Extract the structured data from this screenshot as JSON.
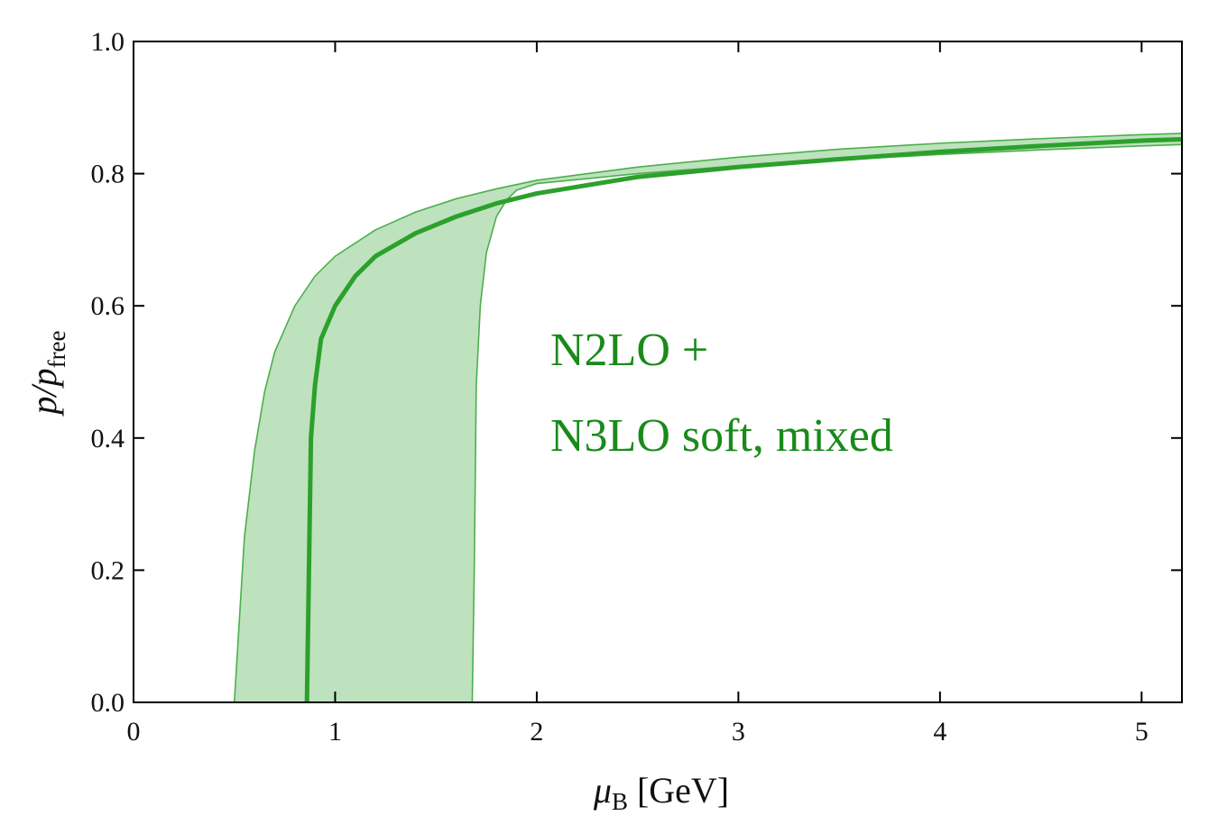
{
  "chart_data": {
    "type": "area",
    "xlabel": {
      "symbol": "μ",
      "subscript": "B",
      "unit": "[GeV]"
    },
    "ylabel": {
      "symbol": "p/p",
      "subscript": "free"
    },
    "xlim": [
      0,
      5.2
    ],
    "ylim": [
      0,
      1.0
    ],
    "x_ticks": [
      0,
      1,
      2,
      3,
      4,
      5
    ],
    "x_tick_labels": [
      "0",
      "1",
      "2",
      "3",
      "4",
      "5"
    ],
    "y_ticks": [
      0.0,
      0.2,
      0.4,
      0.6,
      0.8,
      1.0
    ],
    "y_tick_labels": [
      "0.0",
      "0.2",
      "0.4",
      "0.6",
      "0.8",
      "1.0"
    ],
    "annotation": {
      "lines": [
        "N2LO +",
        "N3LO soft, mixed"
      ]
    },
    "grid": false,
    "colors": {
      "line": "#2ca02c",
      "band_fill": "#bde2bd",
      "band_edge": "#4caf4c",
      "annotation": "#1a8a1a",
      "axis": "#000000"
    },
    "series": [
      {
        "kind": "central-line",
        "points": [
          [
            0.86,
            0.0
          ],
          [
            0.87,
            0.2
          ],
          [
            0.88,
            0.4
          ],
          [
            0.9,
            0.48
          ],
          [
            0.93,
            0.55
          ],
          [
            1.0,
            0.6
          ],
          [
            1.1,
            0.645
          ],
          [
            1.2,
            0.675
          ],
          [
            1.4,
            0.71
          ],
          [
            1.6,
            0.735
          ],
          [
            1.8,
            0.755
          ],
          [
            2.0,
            0.77
          ],
          [
            2.5,
            0.795
          ],
          [
            3.0,
            0.81
          ],
          [
            3.5,
            0.822
          ],
          [
            4.0,
            0.833
          ],
          [
            4.5,
            0.842
          ],
          [
            5.0,
            0.85
          ],
          [
            5.2,
            0.852
          ]
        ]
      },
      {
        "kind": "band-upper",
        "points": [
          [
            0.5,
            0.0
          ],
          [
            0.52,
            0.1
          ],
          [
            0.55,
            0.25
          ],
          [
            0.6,
            0.38
          ],
          [
            0.65,
            0.47
          ],
          [
            0.7,
            0.53
          ],
          [
            0.8,
            0.6
          ],
          [
            0.9,
            0.645
          ],
          [
            1.0,
            0.675
          ],
          [
            1.2,
            0.715
          ],
          [
            1.4,
            0.742
          ],
          [
            1.6,
            0.762
          ],
          [
            1.8,
            0.777
          ],
          [
            2.0,
            0.79
          ],
          [
            2.5,
            0.81
          ],
          [
            3.0,
            0.825
          ],
          [
            3.5,
            0.837
          ],
          [
            4.0,
            0.846
          ],
          [
            4.5,
            0.853
          ],
          [
            5.0,
            0.859
          ],
          [
            5.2,
            0.861
          ]
        ]
      },
      {
        "kind": "band-lower",
        "points": [
          [
            1.68,
            0.0
          ],
          [
            1.69,
            0.2
          ],
          [
            1.7,
            0.48
          ],
          [
            1.72,
            0.6
          ],
          [
            1.75,
            0.68
          ],
          [
            1.8,
            0.735
          ],
          [
            1.85,
            0.76
          ],
          [
            1.9,
            0.775
          ],
          [
            2.0,
            0.785
          ],
          [
            2.5,
            0.8
          ],
          [
            3.0,
            0.812
          ],
          [
            3.5,
            0.821
          ],
          [
            4.0,
            0.829
          ],
          [
            4.5,
            0.836
          ],
          [
            5.0,
            0.842
          ],
          [
            5.2,
            0.844
          ]
        ]
      }
    ]
  }
}
